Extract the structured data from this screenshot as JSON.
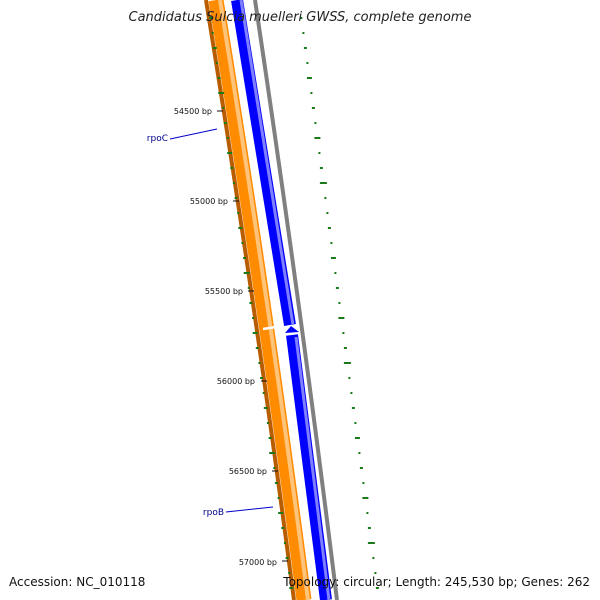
{
  "title": "Candidatus Sulcia muelleri GWSS, complete genome",
  "footer": {
    "accession": "Accession: NC_010118",
    "summary": "Topology: circular; Length: 245,530 bp; Genes: 262"
  },
  "colors": {
    "forward_cds": "#0000ff",
    "reverse_cds": "#ff8c00",
    "backbone": "#808080",
    "gc_skew": "#1a7a1a",
    "gene_label": "#00008b"
  },
  "ticks": [
    {
      "label": "54500 bp"
    },
    {
      "label": "55000 bp"
    },
    {
      "label": "55500 bp"
    },
    {
      "label": "56000 bp"
    },
    {
      "label": "56500 bp"
    },
    {
      "label": "57000 bp"
    }
  ],
  "genes": [
    {
      "name": "rpoC"
    },
    {
      "name": "rpoB"
    }
  ]
}
